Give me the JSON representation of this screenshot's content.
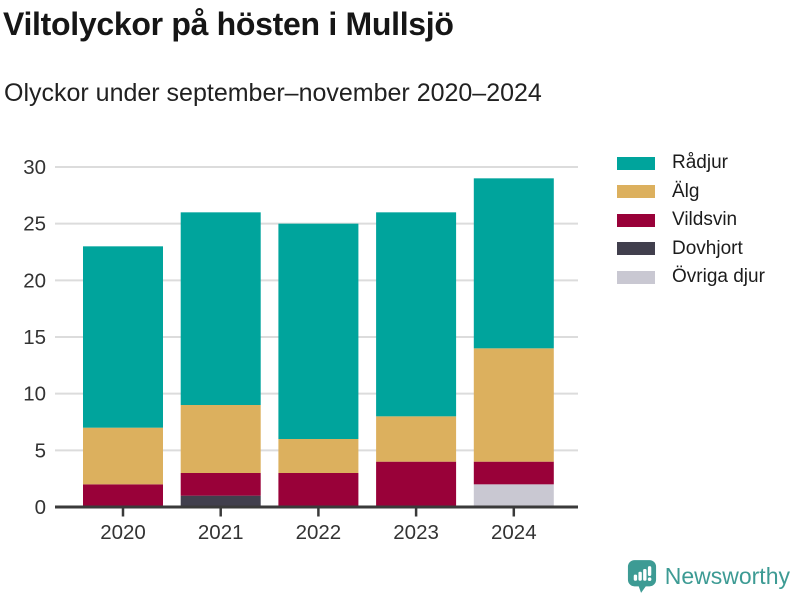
{
  "header": {
    "title": "Viltolyckor på hösten i Mullsjö",
    "subtitle": "Olyckor under september–november 2020–2024"
  },
  "chart_data": {
    "type": "bar",
    "stacked": true,
    "categories": [
      "2020",
      "2021",
      "2022",
      "2023",
      "2024"
    ],
    "series": [
      {
        "name": "Rådjur",
        "color": "#00a49c",
        "values": [
          16,
          17,
          19,
          18,
          15
        ]
      },
      {
        "name": "Älg",
        "color": "#dcb05e",
        "values": [
          5,
          6,
          3,
          4,
          10
        ]
      },
      {
        "name": "Vildsvin",
        "color": "#990139",
        "values": [
          2,
          2,
          3,
          4,
          2
        ]
      },
      {
        "name": "Dovhjort",
        "color": "#413f4d",
        "values": [
          0,
          1,
          0,
          0,
          0
        ]
      },
      {
        "name": "Övriga djur",
        "color": "#c9c8d2",
        "values": [
          0,
          0,
          0,
          0,
          2
        ]
      }
    ],
    "stack_order_bottom_to_top": [
      "Övriga djur",
      "Dovhjort",
      "Vildsvin",
      "Älg",
      "Rådjur"
    ],
    "y_ticks": [
      0,
      5,
      10,
      15,
      20,
      25,
      30
    ],
    "ylim": [
      0,
      30
    ],
    "xlabel": "",
    "ylabel": "",
    "grid": true,
    "legend_position": "right",
    "axis_color": "#3a3a3a",
    "grid_color": "#dcdcdc",
    "tick_label_color": "#333333"
  },
  "footer": {
    "brand": "Newsworthy",
    "brand_color": "#3d9b94",
    "logo_icon": "bar-chart-speech-bubble-icon"
  }
}
